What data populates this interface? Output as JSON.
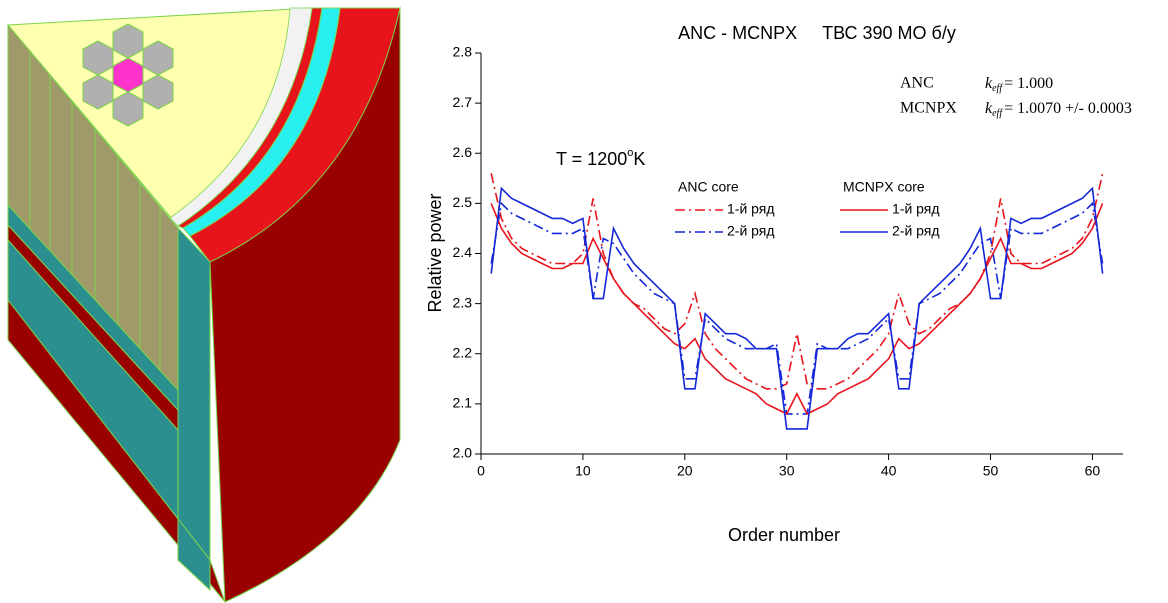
{
  "chart_data": {
    "type": "line",
    "title": "ANC - MCNPX     ТВС 390 МО б/у",
    "x_label": "Order number",
    "y_label": "Relative power",
    "temperature": {
      "text": "T = 1200",
      "sup": "o",
      "after": "K"
    },
    "annotations": [
      {
        "label": "ANC",
        "k": "k",
        "sub": "eff",
        "value": "= 1.000"
      },
      {
        "label": "MCNPX",
        "k": "k",
        "sub": "eff",
        "value": "= 1.0070 +/- 0.0003"
      }
    ],
    "legend_titles": [
      "ANC core",
      "MCNPX core"
    ],
    "x": [
      1,
      2,
      3,
      4,
      5,
      6,
      7,
      8,
      9,
      10,
      11,
      12,
      13,
      14,
      15,
      16,
      17,
      18,
      19,
      20,
      21,
      22,
      23,
      24,
      25,
      26,
      27,
      28,
      29,
      30,
      31,
      32,
      33,
      34,
      35,
      36,
      37,
      38,
      39,
      40,
      41,
      42,
      43,
      44,
      45,
      46,
      47,
      48,
      49,
      50,
      51,
      52,
      53,
      54,
      55,
      56,
      57,
      58,
      59,
      60,
      61
    ],
    "series": [
      {
        "name": "1-й ряд",
        "color": "#e8141c",
        "line_style": "dashdot",
        "values": [
          2.56,
          2.47,
          2.43,
          2.41,
          2.4,
          2.39,
          2.38,
          2.38,
          2.38,
          2.4,
          2.51,
          2.4,
          2.35,
          2.32,
          2.3,
          2.29,
          2.27,
          2.25,
          2.24,
          2.26,
          2.32,
          2.24,
          2.21,
          2.19,
          2.17,
          2.15,
          2.14,
          2.13,
          2.13,
          2.14,
          2.24,
          2.14,
          2.13,
          2.13,
          2.14,
          2.15,
          2.17,
          2.19,
          2.21,
          2.24,
          2.32,
          2.26,
          2.24,
          2.25,
          2.27,
          2.29,
          2.3,
          2.32,
          2.35,
          2.4,
          2.51,
          2.4,
          2.38,
          2.38,
          2.38,
          2.39,
          2.4,
          2.41,
          2.43,
          2.47,
          2.56
        ]
      },
      {
        "name": "2-й ряд",
        "color": "#1428d8",
        "line_style": "dashdot",
        "values": [
          2.38,
          2.5,
          2.48,
          2.47,
          2.46,
          2.45,
          2.44,
          2.44,
          2.44,
          2.45,
          2.31,
          2.43,
          2.42,
          2.39,
          2.36,
          2.34,
          2.32,
          2.31,
          2.3,
          2.15,
          2.15,
          2.27,
          2.25,
          2.23,
          2.22,
          2.21,
          2.21,
          2.21,
          2.22,
          2.08,
          2.08,
          2.08,
          2.22,
          2.21,
          2.21,
          2.21,
          2.22,
          2.23,
          2.25,
          2.27,
          2.15,
          2.15,
          2.3,
          2.31,
          2.32,
          2.34,
          2.36,
          2.39,
          2.42,
          2.43,
          2.31,
          2.45,
          2.44,
          2.44,
          2.44,
          2.45,
          2.46,
          2.47,
          2.48,
          2.5,
          2.38
        ]
      },
      {
        "name": "1-й ряд",
        "color": "#e8141c",
        "line_style": "solid",
        "values": [
          2.5,
          2.45,
          2.42,
          2.4,
          2.39,
          2.38,
          2.37,
          2.37,
          2.38,
          2.38,
          2.43,
          2.39,
          2.35,
          2.32,
          2.3,
          2.28,
          2.26,
          2.24,
          2.22,
          2.21,
          2.23,
          2.19,
          2.17,
          2.15,
          2.14,
          2.13,
          2.12,
          2.1,
          2.09,
          2.08,
          2.12,
          2.08,
          2.09,
          2.1,
          2.12,
          2.13,
          2.14,
          2.15,
          2.17,
          2.19,
          2.23,
          2.21,
          2.22,
          2.24,
          2.26,
          2.28,
          2.3,
          2.32,
          2.35,
          2.39,
          2.43,
          2.38,
          2.38,
          2.37,
          2.37,
          2.38,
          2.39,
          2.4,
          2.42,
          2.45,
          2.5
        ]
      },
      {
        "name": "2-й ряд",
        "color": "#1428d8",
        "line_style": "solid",
        "values": [
          2.36,
          2.53,
          2.51,
          2.5,
          2.49,
          2.48,
          2.47,
          2.47,
          2.46,
          2.47,
          2.31,
          2.31,
          2.45,
          2.41,
          2.38,
          2.36,
          2.34,
          2.32,
          2.3,
          2.13,
          2.13,
          2.28,
          2.26,
          2.24,
          2.24,
          2.23,
          2.21,
          2.21,
          2.21,
          2.05,
          2.05,
          2.05,
          2.21,
          2.21,
          2.21,
          2.23,
          2.24,
          2.24,
          2.26,
          2.28,
          2.13,
          2.13,
          2.3,
          2.32,
          2.34,
          2.36,
          2.38,
          2.41,
          2.45,
          2.31,
          2.31,
          2.47,
          2.46,
          2.47,
          2.47,
          2.48,
          2.49,
          2.5,
          2.51,
          2.53,
          2.36
        ]
      }
    ],
    "xlim": [
      0,
      63
    ],
    "xticks": [
      0,
      10,
      20,
      30,
      40,
      50,
      60
    ],
    "ylim": [
      2.0,
      2.8
    ],
    "yticks": [
      {
        "value": 2.0,
        "label": "2.0"
      },
      2.1,
      2.2,
      2.3,
      2.4,
      2.5,
      2.6,
      2.7,
      2.8
    ],
    "grid": false
  }
}
